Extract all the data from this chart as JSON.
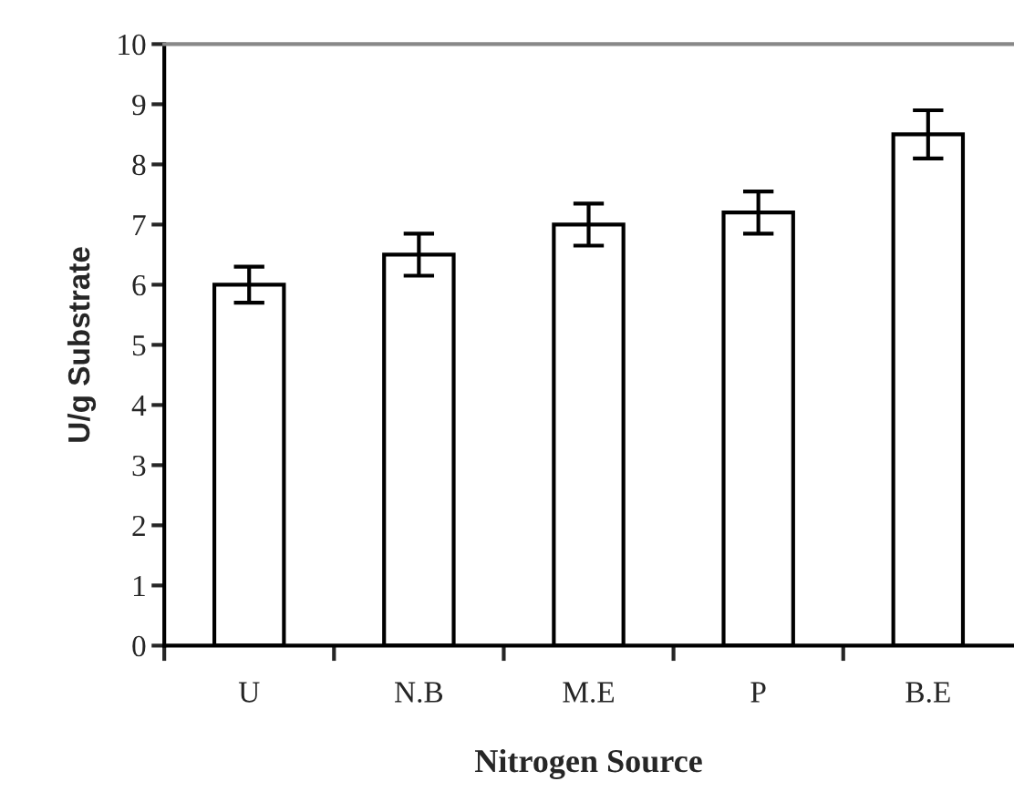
{
  "chart_data": {
    "type": "bar",
    "xlabel": "Nitrogen Source",
    "ylabel": "U/g Substrate",
    "categories": [
      "U",
      "N.B",
      "M.E",
      "P",
      "B.E"
    ],
    "values": [
      6.0,
      6.5,
      7.0,
      7.2,
      8.5
    ],
    "errors": [
      0.3,
      0.35,
      0.35,
      0.35,
      0.4
    ],
    "color": "#ffffff",
    "ylim": [
      0,
      10
    ],
    "yticks": [
      0,
      1,
      2,
      3,
      4,
      5,
      6,
      7,
      8,
      9,
      10
    ],
    "grid": false
  }
}
